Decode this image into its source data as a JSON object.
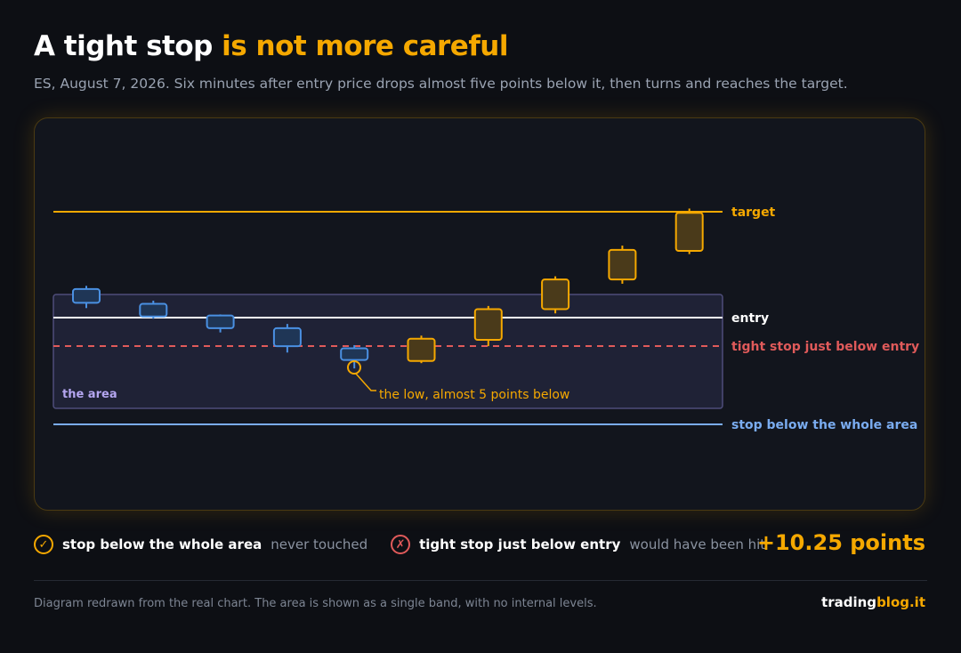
{
  "title": {
    "part1": "A tight stop",
    "part2": "is not more careful"
  },
  "subtitle": "ES, August 7, 2026. Six minutes after entry price drops almost five points below it, then turns and reaches the target.",
  "chart_data": {
    "type": "candlestick",
    "levels": {
      "target": {
        "label": "target",
        "color": "#f5a800"
      },
      "entry": {
        "label": "entry",
        "color": "#ffffff"
      },
      "tight_stop": {
        "label": "tight stop just below entry",
        "color": "#e05a5a"
      },
      "area_stop": {
        "label": "stop below the whole area",
        "color": "#7aacf0"
      }
    },
    "area": {
      "label": "the area"
    },
    "annotation": "the low, almost 5 points below",
    "candles": [
      {
        "phase": "before",
        "open": 1.4,
        "high": 3.0,
        "low": 0.9,
        "close": 2.7
      },
      {
        "phase": "before",
        "open": 0.1,
        "high": 1.6,
        "low": -0.1,
        "close": 1.3
      },
      {
        "phase": "before",
        "open": -1.0,
        "high": 0.3,
        "low": -1.4,
        "close": 0.2
      },
      {
        "phase": "before",
        "open": -2.7,
        "high": -0.6,
        "low": -3.3,
        "close": -1.0
      },
      {
        "phase": "before",
        "open": -4.0,
        "high": -2.6,
        "low": -4.8,
        "close": -2.9
      },
      {
        "phase": "after",
        "open": -4.1,
        "high": -1.7,
        "low": -4.3,
        "close": -2.0
      },
      {
        "phase": "after",
        "open": -2.1,
        "high": 1.1,
        "low": -2.7,
        "close": 0.8
      },
      {
        "phase": "after",
        "open": 0.8,
        "high": 3.9,
        "low": 0.4,
        "close": 3.6
      },
      {
        "phase": "after",
        "open": 3.6,
        "high": 6.8,
        "low": 3.2,
        "close": 6.4
      },
      {
        "phase": "after",
        "open": 6.3,
        "high": 10.3,
        "low": 6.0,
        "close": 9.9
      }
    ]
  },
  "legend": {
    "ok_icon": "check-icon",
    "ok_label": "stop below the whole area",
    "ok_note": "never touched",
    "ko_icon": "cross-icon",
    "ko_label": "tight stop just below entry",
    "ko_note": "would have been hit"
  },
  "result": "+10.25 points",
  "footnote": "Diagram redrawn from the real chart. The area is shown as a single band, with no internal levels.",
  "brand": {
    "part1": "trading",
    "part2": "blog.it"
  },
  "colors": {
    "accent": "#f5a800",
    "blue": "#4a90e2",
    "red": "#e05a5a",
    "light_blue": "#7aacf0"
  }
}
